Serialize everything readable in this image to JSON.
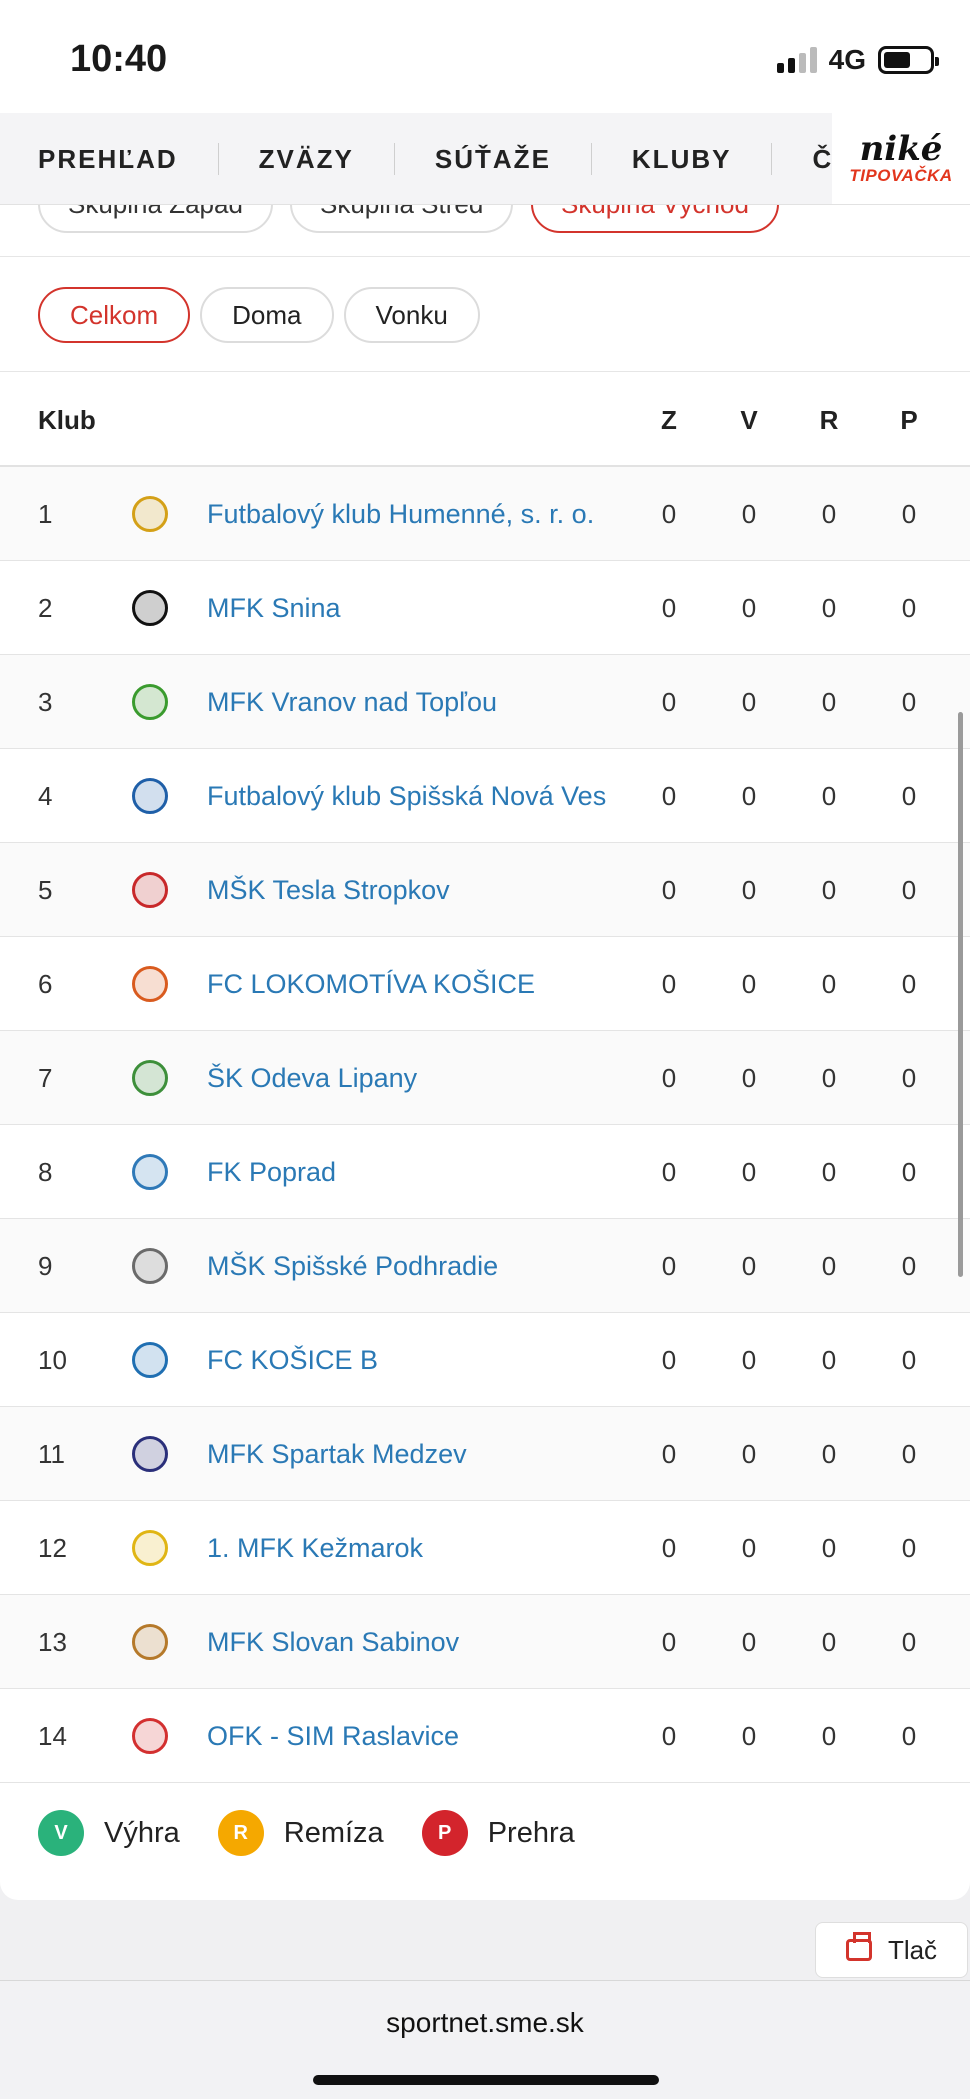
{
  "status": {
    "time": "10:40",
    "network": "4G"
  },
  "nav": {
    "items": [
      "PREHĽAD",
      "ZVÄZY",
      "SÚŤAŽE",
      "KLUBY",
      "ČLEN"
    ],
    "sponsor_top": "niké",
    "sponsor_bottom": "TIPOVAČKA"
  },
  "groups": [
    {
      "label": "Skupina Západ",
      "active": false
    },
    {
      "label": "Skupina Stred",
      "active": false
    },
    {
      "label": "Skupina Východ",
      "active": true
    }
  ],
  "filters": [
    {
      "label": "Celkom",
      "active": true
    },
    {
      "label": "Doma",
      "active": false
    },
    {
      "label": "Vonku",
      "active": false
    }
  ],
  "table": {
    "headers": {
      "club": "Klub",
      "z": "Z",
      "v": "V",
      "r": "R",
      "p": "P"
    },
    "rows": [
      {
        "rank": "1",
        "club": "Futbalový klub Humenné, s. r. o.",
        "z": "0",
        "v": "0",
        "r": "0",
        "p": "0",
        "logo_color": "#d4a017"
      },
      {
        "rank": "2",
        "club": "MFK Snina",
        "z": "0",
        "v": "0",
        "r": "0",
        "p": "0",
        "logo_color": "#111111"
      },
      {
        "rank": "3",
        "club": "MFK Vranov nad Topľou",
        "z": "0",
        "v": "0",
        "r": "0",
        "p": "0",
        "logo_color": "#3a9b2e"
      },
      {
        "rank": "4",
        "club": "Futbalový klub Spišská Nová Ves",
        "z": "0",
        "v": "0",
        "r": "0",
        "p": "0",
        "logo_color": "#1f5fa8"
      },
      {
        "rank": "5",
        "club": "MŠK Tesla Stropkov",
        "z": "0",
        "v": "0",
        "r": "0",
        "p": "0",
        "logo_color": "#c8282a"
      },
      {
        "rank": "6",
        "club": "FC LOKOMOTÍVA KOŠICE",
        "z": "0",
        "v": "0",
        "r": "0",
        "p": "0",
        "logo_color": "#d95b1f"
      },
      {
        "rank": "7",
        "club": "ŠK Odeva Lipany",
        "z": "0",
        "v": "0",
        "r": "0",
        "p": "0",
        "logo_color": "#3d8f3a"
      },
      {
        "rank": "8",
        "club": "FK Poprad",
        "z": "0",
        "v": "0",
        "r": "0",
        "p": "0",
        "logo_color": "#2f79b8"
      },
      {
        "rank": "9",
        "club": "MŠK Spišské Podhradie",
        "z": "0",
        "v": "0",
        "r": "0",
        "p": "0",
        "logo_color": "#6a6a6a"
      },
      {
        "rank": "10",
        "club": "FC KOŠICE B",
        "z": "0",
        "v": "0",
        "r": "0",
        "p": "0",
        "logo_color": "#1f6fb2"
      },
      {
        "rank": "11",
        "club": "MFK Spartak Medzev",
        "z": "0",
        "v": "0",
        "r": "0",
        "p": "0",
        "logo_color": "#2a2f7a"
      },
      {
        "rank": "12",
        "club": "1. MFK Kežmarok",
        "z": "0",
        "v": "0",
        "r": "0",
        "p": "0",
        "logo_color": "#e0b514"
      },
      {
        "rank": "13",
        "club": "MFK Slovan Sabinov",
        "z": "0",
        "v": "0",
        "r": "0",
        "p": "0",
        "logo_color": "#b5792a"
      },
      {
        "rank": "14",
        "club": "OFK - SIM Raslavice",
        "z": "0",
        "v": "0",
        "r": "0",
        "p": "0",
        "logo_color": "#d33030"
      }
    ]
  },
  "legend": [
    {
      "letter": "V",
      "label": "Výhra",
      "color": "#2ab27b"
    },
    {
      "letter": "R",
      "label": "Remíza",
      "color": "#f5a800"
    },
    {
      "letter": "P",
      "label": "Prehra",
      "color": "#d3242c"
    }
  ],
  "print_label": "Tlač",
  "browser_url": "sportnet.sme.sk"
}
